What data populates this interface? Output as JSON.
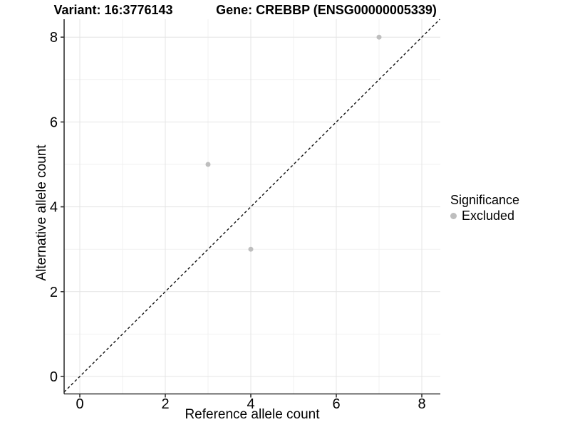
{
  "figure": {
    "background": "#ffffff"
  },
  "chart_data": {
    "type": "scatter",
    "titles": {
      "variant": "Variant: 16:3776143",
      "gene": "Gene: CREBBP (ENSG00000005339)"
    },
    "x": {
      "label": "Reference allele count",
      "tick_labels": [
        "0",
        "2",
        "4",
        "6",
        "8"
      ],
      "tick_values": [
        0,
        2,
        4,
        6,
        8
      ],
      "minor_values": [
        1,
        3,
        5,
        7
      ],
      "range": [
        -0.37,
        8.43
      ]
    },
    "y": {
      "label": "Alternative allele count",
      "tick_labels": [
        "0",
        "2",
        "4",
        "6",
        "8"
      ],
      "tick_values": [
        0,
        2,
        4,
        6,
        8
      ],
      "minor_values": [
        1,
        3,
        5,
        7
      ],
      "range": [
        -0.41,
        8.42
      ]
    },
    "series": [
      {
        "name": "Excluded",
        "marker": "circle",
        "color": "#bebebe",
        "points": [
          [
            3,
            5
          ],
          [
            4,
            3
          ],
          [
            7,
            8
          ]
        ]
      }
    ],
    "reference_line": {
      "equation": "y = x",
      "style": "dashed",
      "color": "#111111"
    },
    "grid": {
      "major_color": "#e4e4e4",
      "minor_color": "#f1f1f1"
    },
    "axis_color": "#333333",
    "legend": {
      "title": "Significance",
      "position": "right",
      "items": [
        {
          "label": "Excluded",
          "color": "#bebebe"
        }
      ]
    }
  }
}
